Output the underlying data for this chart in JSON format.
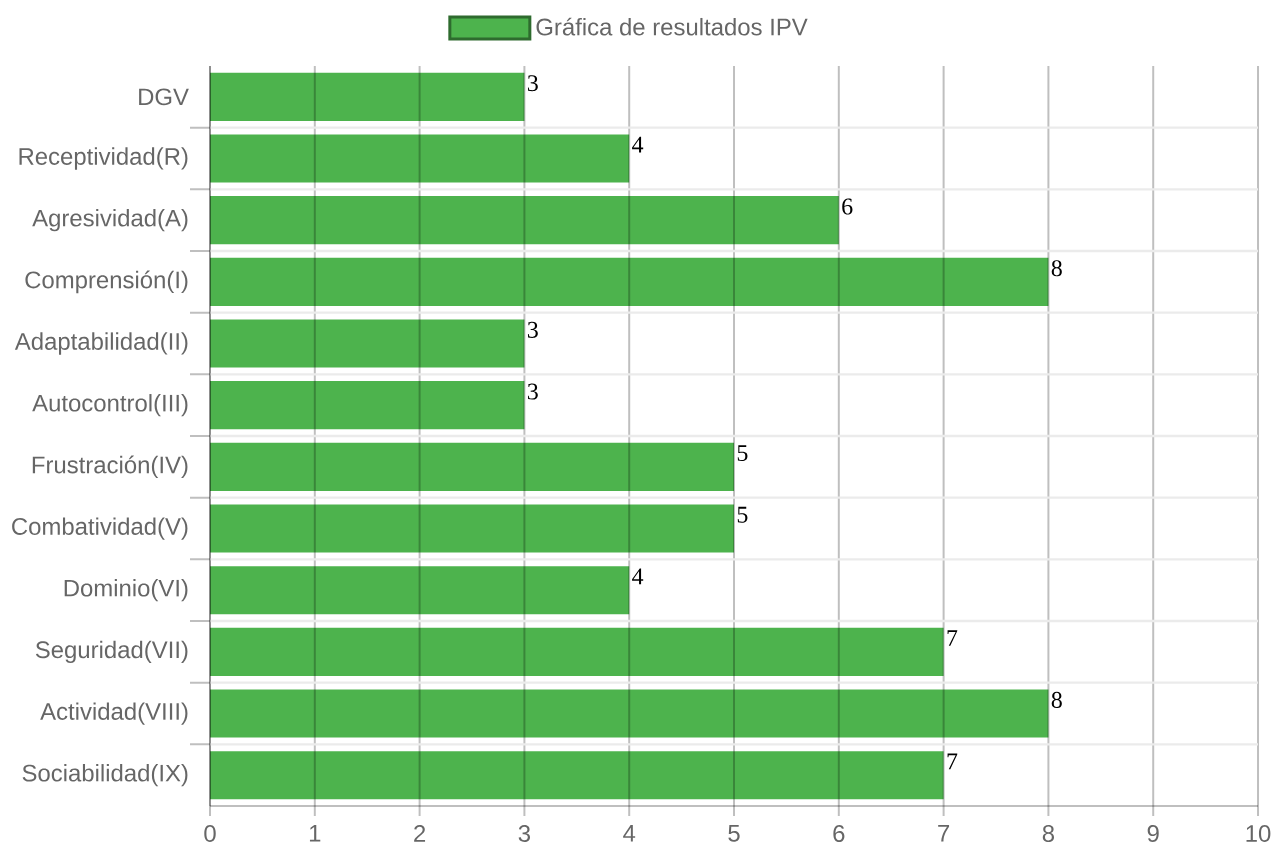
{
  "chart_data": {
    "type": "bar",
    "orientation": "horizontal",
    "categories": [
      "DGV",
      "Receptividad(R)",
      "Agresividad(A)",
      "Comprensión(I)",
      "Adaptabilidad(II)",
      "Autocontrol(III)",
      "Frustración(IV)",
      "Combatividad(V)",
      "Dominio(VI)",
      "Seguridad(VII)",
      "Actividad(VIII)",
      "Sociabilidad(IX)"
    ],
    "series": [
      {
        "name": "Gráfica de resultados IPV",
        "color": "#4db34d",
        "values": [
          3,
          4,
          6,
          8,
          3,
          3,
          5,
          5,
          4,
          7,
          8,
          7
        ]
      }
    ],
    "xlim": [
      0,
      10
    ],
    "xticks": [
      0,
      1,
      2,
      3,
      4,
      5,
      6,
      7,
      8,
      9,
      10
    ],
    "grid": true,
    "legend": "top",
    "data_labels": true
  }
}
